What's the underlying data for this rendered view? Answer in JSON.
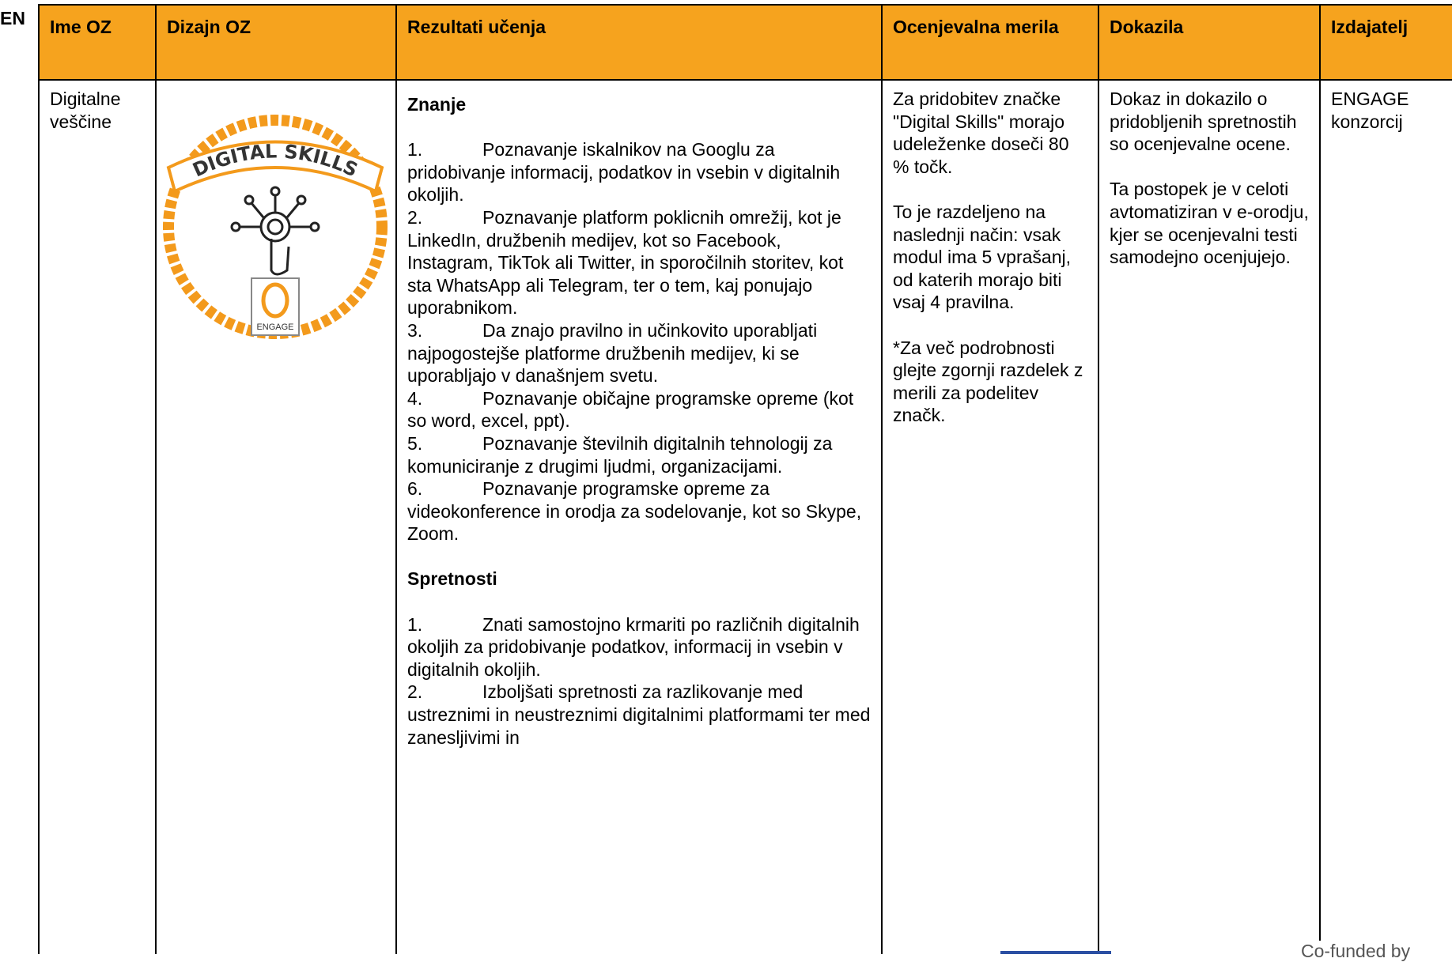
{
  "header": {
    "cut_text": "EN"
  },
  "table": {
    "headers": [
      "Ime OZ",
      "Dizajn OZ",
      "Rezultati učenja",
      "Ocenjevalna merila",
      "Dokazila",
      "Izdajatelj"
    ],
    "row": {
      "name": "Digitalne veščine",
      "badge": {
        "title": "DIGITAL SKILLS",
        "logo": "ENGAGE"
      },
      "results": [
        {
          "heading": "Znanje",
          "items": [
            {
              "number": "1.",
              "text": "Poznavanje iskalnikov na Googlu za pridobivanje informacij, podatkov in vsebin v digitalnih okoljih."
            },
            {
              "number": "2.",
              "text": "Poznavanje platform poklicnih omrežij, kot je LinkedIn, družbenih medijev, kot so Facebook, Instagram, TikTok ali Twitter, in sporočilnih storitev, kot sta WhatsApp ali Telegram, ter o tem, kaj ponujajo uporabnikom."
            },
            {
              "number": "3.",
              "text": "Da znajo pravilno in učinkovito uporabljati najpogostejše platforme družbenih medijev, ki se uporabljajo v današnjem svetu."
            },
            {
              "number": "4.",
              "text": "Poznavanje običajne programske opreme (kot so word, excel, ppt)."
            },
            {
              "number": "5.",
              "text": "Poznavanje številnih digitalnih tehnologij za komuniciranje z drugimi ljudmi, organizacijami."
            },
            {
              "number": "6.",
              "text": "Poznavanje programske opreme za videokonference in orodja za sodelovanje, kot so Skype, Zoom."
            }
          ]
        },
        {
          "heading": "Spretnosti",
          "items": [
            {
              "number": "1.",
              "text": "Znati samostojno krmariti po različnih digitalnih okoljih za pridobivanje podatkov, informacij in vsebin v digitalnih okoljih."
            },
            {
              "number": "2.",
              "text": "Izboljšati spretnosti za razlikovanje med ustreznimi in neustreznimi digitalnimi platformami ter med zanesljivimi in"
            }
          ]
        }
      ],
      "criteria": [
        "Za pridobitev značke \"Digital Skills\" morajo udeleženke doseči 80 % točk.",
        "To je razdeljeno na naslednji način: vsak modul ima 5 vprašanj, od katerih morajo biti vsaj 4 pravilna.",
        "*Za več podrobnosti glejte zgornji razdelek z merili za podelitev značk."
      ],
      "evidence": [
        "Dokaz in dokazilo o pridobljenih spretnostih so ocenjevalne ocene.",
        "Ta postopek je v celoti avtomatiziran v e-orodju, kjer se ocenjevalni testi samodejno ocenjujejo."
      ],
      "issuer": "ENGAGE konzorcij"
    }
  },
  "footer": {
    "text": "Co-funded by"
  }
}
